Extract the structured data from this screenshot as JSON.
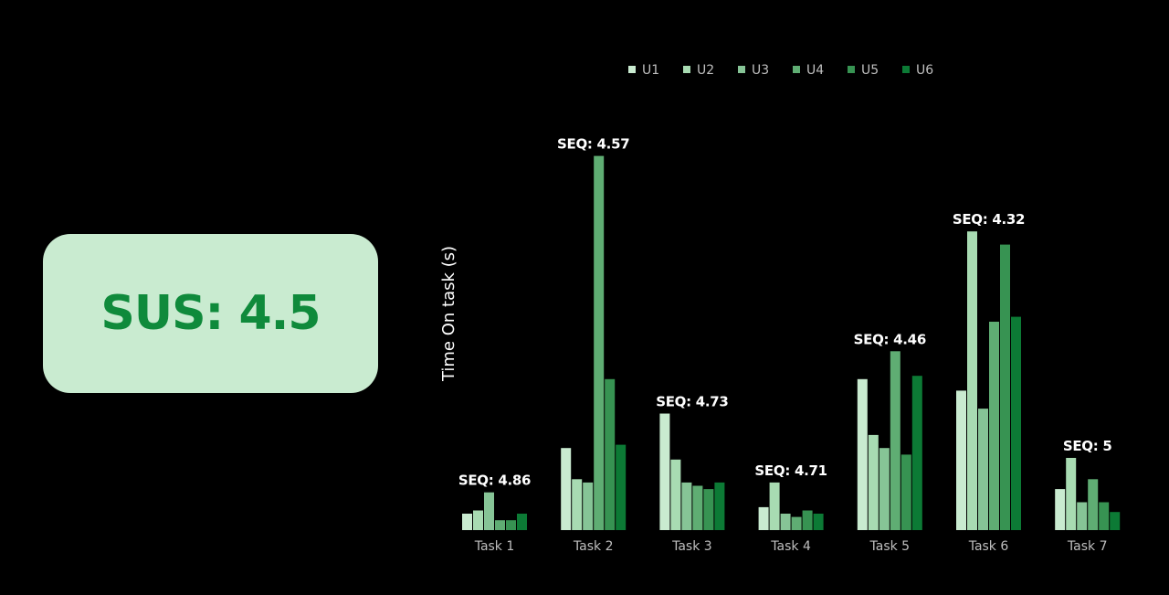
{
  "sus_card": {
    "label": "SUS: 4.5"
  },
  "chart_data": {
    "type": "bar",
    "title": "",
    "xlabel": "",
    "ylabel": "Time On task (s)",
    "categories": [
      "Task 1",
      "Task 2",
      "Task 3",
      "Task 4",
      "Task 5",
      "Task 6",
      "Task 7"
    ],
    "seq_labels": [
      "SEQ: 4.86",
      "SEQ: 4.57",
      "SEQ: 4.73",
      "SEQ: 4.71",
      "SEQ: 4.46",
      "SEQ: 4.32",
      "SEQ: 5"
    ],
    "ylim": [
      0,
      230
    ],
    "grid": false,
    "legend": {
      "placement": "top"
    },
    "series": [
      {
        "name": "U1",
        "color": "#c9ebd0",
        "values": [
          10,
          50,
          71,
          14,
          92,
          85,
          25
        ]
      },
      {
        "name": "U2",
        "color": "#a8dbb2",
        "values": [
          12,
          31,
          43,
          29,
          58,
          182,
          44
        ]
      },
      {
        "name": "U3",
        "color": "#86c496",
        "values": [
          23,
          29,
          29,
          10,
          50,
          74,
          17
        ]
      },
      {
        "name": "U4",
        "color": "#5fad73",
        "values": [
          6,
          228,
          27,
          8,
          109,
          127,
          31
        ]
      },
      {
        "name": "U5",
        "color": "#379352",
        "values": [
          6,
          92,
          25,
          12,
          46,
          174,
          17
        ]
      },
      {
        "name": "U6",
        "color": "#0c7a35",
        "values": [
          10,
          52,
          29,
          10,
          94,
          130,
          11
        ]
      }
    ]
  }
}
